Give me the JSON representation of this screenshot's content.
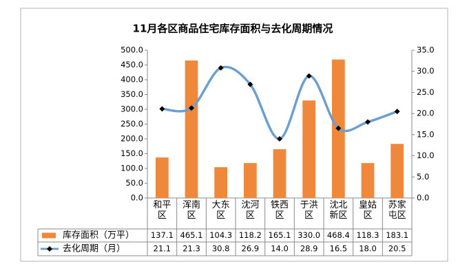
{
  "chart_data": {
    "type": "bar_line",
    "title": "11月各区商品住宅库存面积与去化周期情况",
    "categories": [
      "和平区",
      "浑南区",
      "大东区",
      "沈河区",
      "铁西区",
      "于洪区",
      "沈北新区",
      "皇姑区",
      "苏家屯区"
    ],
    "series": [
      {
        "name": "库存面积（万平）",
        "type": "bar",
        "color": "#f0883c",
        "values": [
          137.1,
          465.1,
          104.3,
          118.2,
          165.1,
          330.0,
          468.4,
          118.3,
          183.1
        ],
        "value_labels": [
          "137.1",
          "465.1",
          "104.3",
          "118.2",
          "165.1",
          "330.0",
          "468.4",
          "118.3",
          "183.1"
        ]
      },
      {
        "name": "去化周期（月）",
        "type": "line",
        "axis": "y2",
        "color": "#6c9fd0",
        "marker_color": "#000000",
        "values": [
          21.1,
          21.3,
          30.8,
          26.9,
          14.0,
          28.9,
          16.5,
          18.0,
          20.5
        ],
        "value_labels": [
          "21.1",
          "21.3",
          "30.8",
          "26.9",
          "14.0",
          "28.9",
          "16.5",
          "18.0",
          "20.5"
        ]
      }
    ],
    "ylim": [
      0,
      500
    ],
    "yticks": [
      {
        "value": 0,
        "label": "0.0"
      },
      {
        "value": 50,
        "label": "50.0"
      },
      {
        "value": 100,
        "label": "100.0"
      },
      {
        "value": 150,
        "label": "150.0"
      },
      {
        "value": 200,
        "label": "200.0"
      },
      {
        "value": 250,
        "label": "250.0"
      },
      {
        "value": 300,
        "label": "300.0"
      },
      {
        "value": 350,
        "label": "350.0"
      },
      {
        "value": 400,
        "label": "400.0"
      },
      {
        "value": 450,
        "label": "450.0"
      },
      {
        "value": 500,
        "label": "500.0"
      }
    ],
    "y2lim": [
      0,
      35
    ],
    "y2ticks": [
      {
        "value": 0,
        "label": "0.0"
      },
      {
        "value": 5,
        "label": "5.0"
      },
      {
        "value": 10,
        "label": "10.0"
      },
      {
        "value": 15,
        "label": "15.0"
      },
      {
        "value": 20,
        "label": "20.0"
      },
      {
        "value": 25,
        "label": "25.0"
      },
      {
        "value": 30,
        "label": "30.0"
      },
      {
        "value": 35,
        "label": "35.0"
      }
    ],
    "grid": false
  }
}
